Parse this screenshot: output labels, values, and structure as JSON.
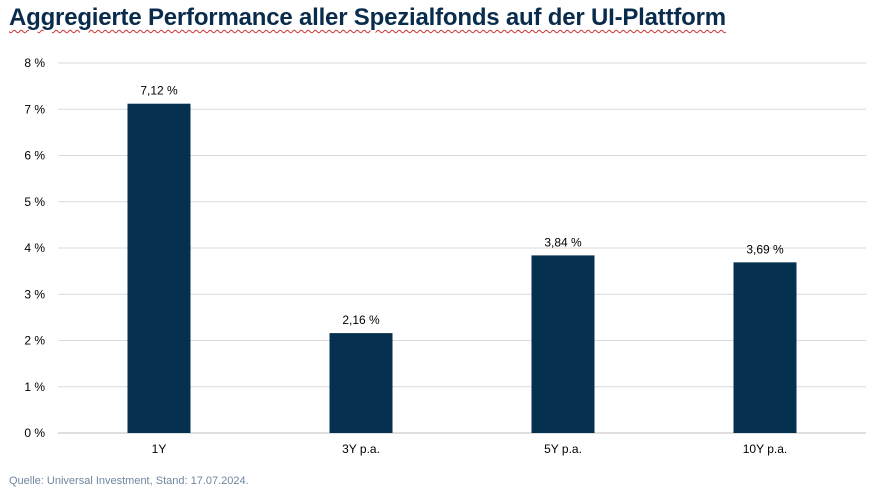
{
  "title": "Aggregierte Performance aller Spezialfonds auf der UI-Plattform",
  "source": "Quelle: Universal Investment, Stand: 17.07.2024.",
  "colors": {
    "bar": "#06304f",
    "grid": "#d9d9d9",
    "title": "#0a2c4c",
    "source": "#6f86a0"
  },
  "chart_data": {
    "type": "bar",
    "title": "Aggregierte Performance aller Spezialfonds auf der UI-Plattform",
    "categories": [
      "1Y",
      "3Y p.a.",
      "5Y p.a.",
      "10Y p.a."
    ],
    "values": [
      7.12,
      2.16,
      3.84,
      3.69
    ],
    "data_labels": [
      "7,12 %",
      "2,16 %",
      "3,84 %",
      "3,69 %"
    ],
    "xlabel": "",
    "ylabel": "",
    "ylim": [
      0,
      8
    ],
    "y_ticks": [
      0,
      1,
      2,
      3,
      4,
      5,
      6,
      7,
      8
    ],
    "y_tick_labels": [
      "0 %",
      "1 %",
      "2 %",
      "3 %",
      "4 %",
      "5 %",
      "6 %",
      "7 %",
      "8 %"
    ],
    "grid": true,
    "legend": "none"
  }
}
